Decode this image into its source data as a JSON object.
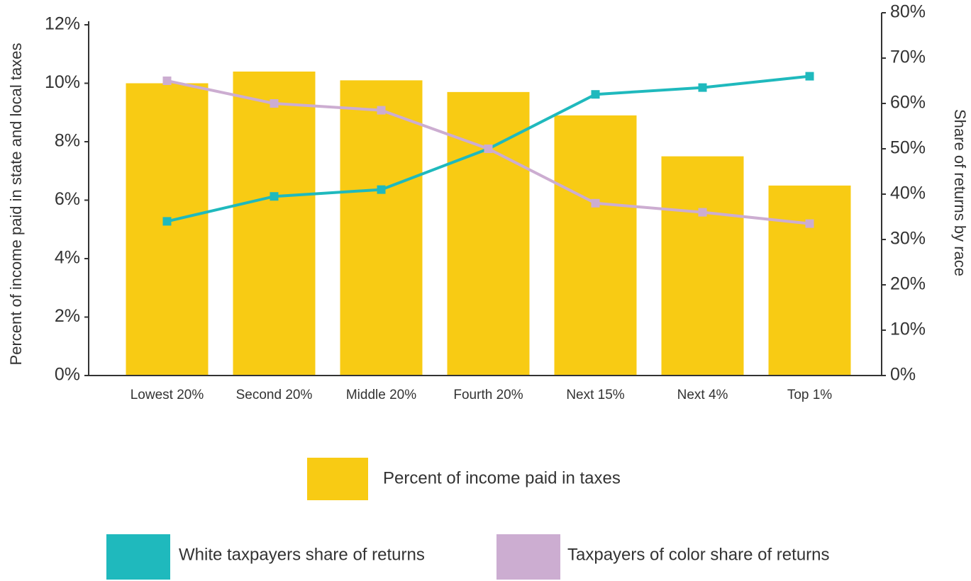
{
  "chart_data": {
    "type": "bar-line",
    "categories": [
      "Lowest 20%",
      "Second 20%",
      "Middle 20%",
      "Fourth 20%",
      "Next 15%",
      "Next 4%",
      "Top 1%"
    ],
    "ylabel": "Percent of income paid in state and local taxes",
    "y2label": "Share of returns by race",
    "ylim": [
      0,
      12
    ],
    "yticks": [
      {
        "value": 0,
        "label": "0%"
      },
      {
        "value": 2,
        "label": "2%"
      },
      {
        "value": 4,
        "label": "4%"
      },
      {
        "value": 6,
        "label": "6%"
      },
      {
        "value": 8,
        "label": "8%"
      },
      {
        "value": 10,
        "label": "10%"
      },
      {
        "value": 12,
        "label": "12%"
      }
    ],
    "y2lim": [
      0,
      80
    ],
    "y2ticks": [
      {
        "value": 0,
        "label": "0%"
      },
      {
        "value": 10,
        "label": "10%"
      },
      {
        "value": 20,
        "label": "20%"
      },
      {
        "value": 30,
        "label": "30%"
      },
      {
        "value": 40,
        "label": "40%"
      },
      {
        "value": 50,
        "label": "50%"
      },
      {
        "value": 60,
        "label": "60%"
      },
      {
        "value": 70,
        "label": "70%"
      },
      {
        "value": 80,
        "label": "80%"
      }
    ],
    "series": [
      {
        "name": "Percent of income paid in taxes",
        "type": "bar",
        "color": "#f8cb14",
        "values": [
          10,
          10.4,
          10.1,
          9.7,
          8.9,
          7.5,
          6.5
        ]
      },
      {
        "name": "White taxpayers share of returns",
        "type": "line",
        "axis": "y2",
        "color": "#1fb9bd",
        "values": [
          34,
          39.5,
          41,
          50,
          62,
          63.5,
          66
        ]
      },
      {
        "name": "Taxpayers of color share of returns",
        "type": "line",
        "axis": "y2",
        "color": "#ccadd1",
        "values": [
          65,
          60,
          58.5,
          50,
          38,
          36,
          33.5
        ]
      }
    ]
  }
}
